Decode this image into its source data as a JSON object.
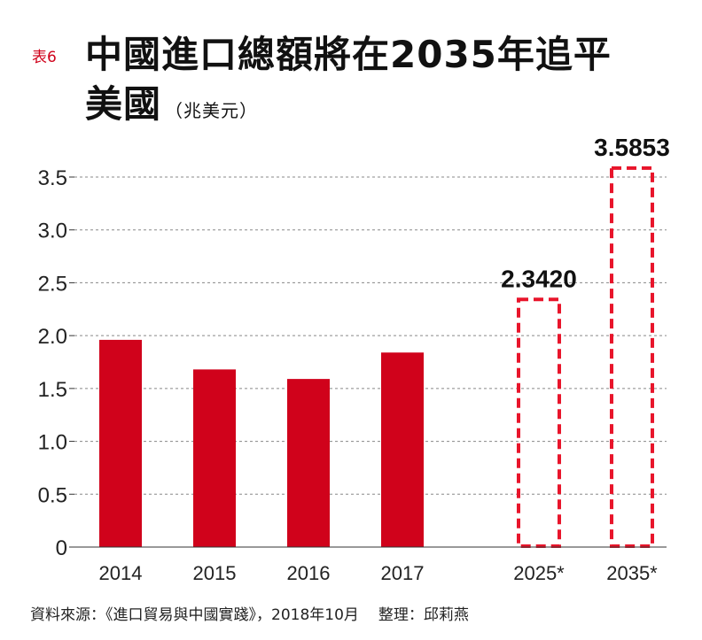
{
  "title": {
    "table_label": "表6",
    "line1": "中國進口總額將在2035年追平",
    "line2": "美國",
    "unit": "（兆美元）"
  },
  "chart_data": {
    "type": "bar",
    "categories": [
      "2014",
      "2015",
      "2016",
      "2017",
      "2025*",
      "2035*"
    ],
    "values": [
      1.96,
      1.68,
      1.59,
      1.84,
      2.342,
      3.5853
    ],
    "projected": [
      false,
      false,
      false,
      false,
      true,
      true
    ],
    "data_labels": [
      "",
      "",
      "",
      "",
      "2.3420",
      "3.5853"
    ],
    "y_ticks": [
      "0",
      "0.5",
      "1.0",
      "1.5",
      "2.0",
      "2.5",
      "3.0",
      "3.5"
    ],
    "y_tick_values": [
      0,
      0.5,
      1.0,
      1.5,
      2.0,
      2.5,
      3.0,
      3.5
    ],
    "ylim": [
      0,
      3.5
    ],
    "grid": true,
    "xlabel": "",
    "ylabel": "",
    "colors": {
      "bar": "#d0021b",
      "projected_outline": "#e8152b",
      "grid": "#888888",
      "axis": "#333333"
    }
  },
  "source": {
    "label": "資料來源：《進口貿易與中國實踐》，2018年10月",
    "editor": "整理：邱莉燕"
  }
}
